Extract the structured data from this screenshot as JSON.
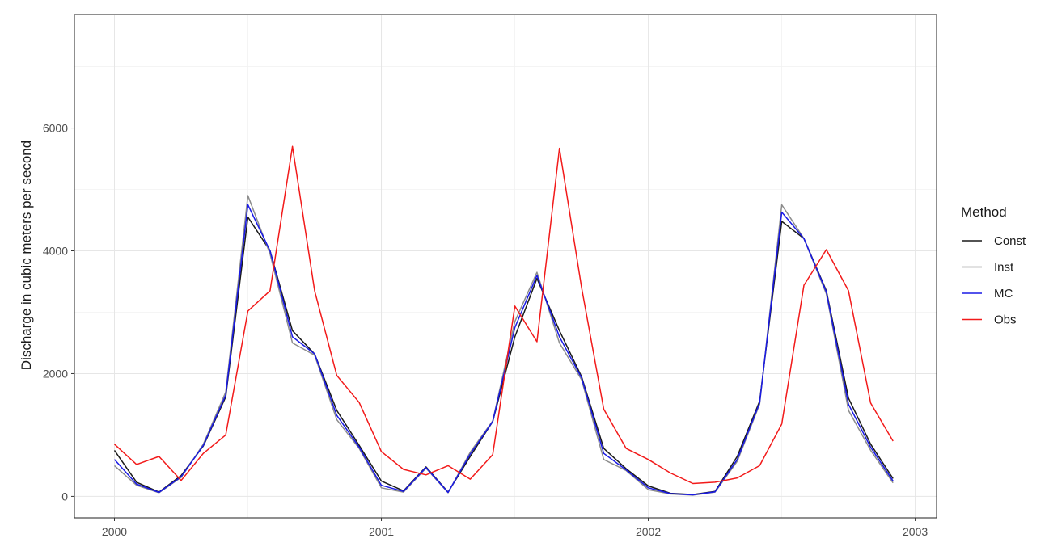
{
  "chart_data": {
    "type": "line",
    "ylabel": "Discharge in cubic meters per second",
    "xlim": [
      1999.85,
      2003.08
    ],
    "ylim": [
      -350,
      7850
    ],
    "x_ticks": [
      2000,
      2001,
      2002,
      2003
    ],
    "y_ticks": [
      0,
      2000,
      4000,
      6000
    ],
    "x_tick_labels": [
      "2000",
      "2001",
      "2002",
      "2003"
    ],
    "y_tick_labels": [
      "0",
      "2000",
      "4000",
      "6000"
    ],
    "x_minor_grid": [
      2000.5,
      2001.5,
      2002.5
    ],
    "y_minor_grid": [
      1000,
      3000,
      5000,
      7000
    ],
    "grid": true,
    "legend": {
      "title": "Method",
      "position": "right"
    },
    "x": [
      2000.0,
      2000.083,
      2000.167,
      2000.25,
      2000.333,
      2000.417,
      2000.5,
      2000.583,
      2000.667,
      2000.75,
      2000.833,
      2000.917,
      2001.0,
      2001.083,
      2001.167,
      2001.25,
      2001.333,
      2001.417,
      2001.5,
      2001.583,
      2001.667,
      2001.75,
      2001.833,
      2001.917,
      2002.0,
      2002.083,
      2002.167,
      2002.25,
      2002.333,
      2002.417,
      2002.5,
      2002.583,
      2002.667,
      2002.75,
      2002.833,
      2002.917
    ],
    "series": [
      {
        "name": "Const",
        "color": "#1a1a1a",
        "values": [
          750,
          230,
          70,
          340,
          820,
          1620,
          4550,
          4000,
          2700,
          2320,
          1400,
          830,
          250,
          90,
          480,
          70,
          650,
          1220,
          2600,
          3550,
          2700,
          1950,
          780,
          450,
          170,
          50,
          30,
          80,
          650,
          1550,
          4480,
          4200,
          3350,
          1600,
          850,
          290
        ]
      },
      {
        "name": "Inst",
        "color": "#8c8c8c",
        "values": [
          500,
          180,
          60,
          310,
          850,
          1700,
          4900,
          3950,
          2500,
          2300,
          1250,
          780,
          140,
          70,
          460,
          60,
          720,
          1230,
          2850,
          3650,
          2500,
          1900,
          600,
          420,
          110,
          40,
          20,
          70,
          570,
          1500,
          4750,
          4200,
          3300,
          1400,
          750,
          220
        ]
      },
      {
        "name": "MC",
        "color": "#1a1ae6",
        "values": [
          600,
          200,
          65,
          320,
          830,
          1650,
          4750,
          4000,
          2600,
          2320,
          1320,
          800,
          180,
          80,
          470,
          65,
          690,
          1220,
          2750,
          3600,
          2600,
          1930,
          700,
          430,
          140,
          45,
          25,
          75,
          600,
          1520,
          4630,
          4200,
          3330,
          1500,
          800,
          250
        ]
      },
      {
        "name": "Obs",
        "color": "#f21a1a",
        "values": [
          850,
          520,
          650,
          260,
          700,
          1000,
          3020,
          3350,
          5700,
          3350,
          1970,
          1530,
          730,
          440,
          350,
          500,
          280,
          680,
          3100,
          2520,
          5670,
          3400,
          1420,
          780,
          600,
          380,
          210,
          230,
          300,
          500,
          1180,
          3440,
          4020,
          3350,
          1520,
          900
        ]
      }
    ]
  }
}
